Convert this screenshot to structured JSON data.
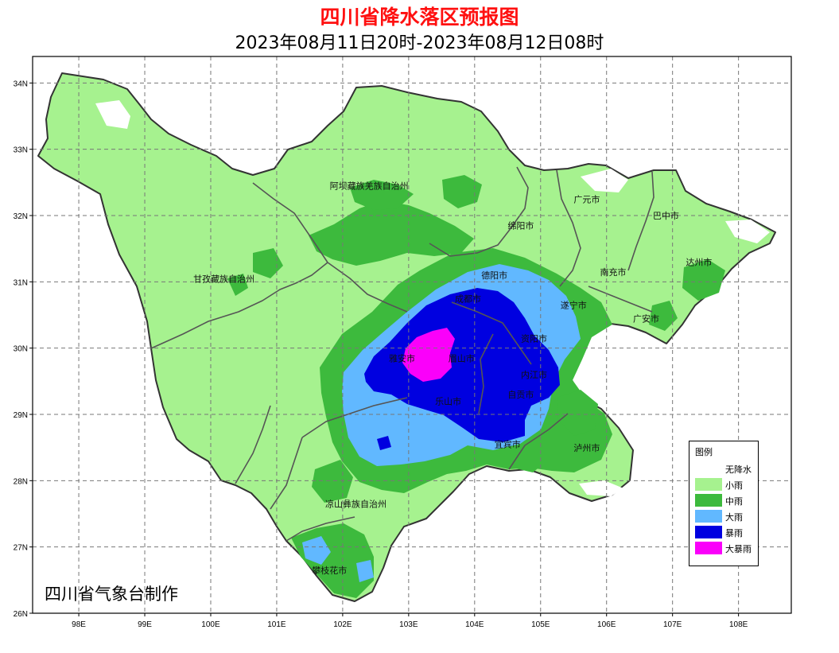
{
  "title": "四川省降水落区预报图",
  "subtitle": "2023年08月11日20时-2023年08月12日08时",
  "credit": "四川省气象台制作",
  "axes": {
    "x_ticks": [
      "98E",
      "99E",
      "100E",
      "101E",
      "102E",
      "103E",
      "104E",
      "105E",
      "106E",
      "107E",
      "108E"
    ],
    "y_ticks": [
      "34N",
      "33N",
      "32N",
      "31N",
      "30N",
      "29N",
      "28N",
      "27N",
      "26N"
    ],
    "lon_range": [
      97.3,
      108.8
    ],
    "lat_range": [
      26,
      34.4
    ],
    "grid": "dashed"
  },
  "colors": {
    "none": "#ffffff",
    "light": "#a6f28f",
    "moderate": "#3dba3d",
    "heavy": "#61b8ff",
    "rainstorm": "#0000e0",
    "heavy_rainstorm": "#fa00fa",
    "border": "#333333"
  },
  "cities": [
    {
      "name": "阿坝藏族羌族自治州",
      "lon": 102.4,
      "lat": 32.4
    },
    {
      "name": "甘孜藏族自治州",
      "lon": 100.2,
      "lat": 31.0
    },
    {
      "name": "广元市",
      "lon": 105.7,
      "lat": 32.2
    },
    {
      "name": "巴中市",
      "lon": 106.9,
      "lat": 31.95
    },
    {
      "name": "绵阳市",
      "lon": 104.7,
      "lat": 31.8
    },
    {
      "name": "达州市",
      "lon": 107.4,
      "lat": 31.25
    },
    {
      "name": "南充市",
      "lon": 106.1,
      "lat": 31.1
    },
    {
      "name": "德阳市",
      "lon": 104.3,
      "lat": 31.05
    },
    {
      "name": "成都市",
      "lon": 103.9,
      "lat": 30.7
    },
    {
      "name": "遂宁市",
      "lon": 105.5,
      "lat": 30.6
    },
    {
      "name": "广安市",
      "lon": 106.6,
      "lat": 30.4
    },
    {
      "name": "资阳市",
      "lon": 104.9,
      "lat": 30.1
    },
    {
      "name": "雅安市",
      "lon": 102.9,
      "lat": 29.8
    },
    {
      "name": "眉山市",
      "lon": 103.8,
      "lat": 29.8
    },
    {
      "name": "内江市",
      "lon": 104.9,
      "lat": 29.55
    },
    {
      "name": "乐山市",
      "lon": 103.6,
      "lat": 29.15
    },
    {
      "name": "自贡市",
      "lon": 104.7,
      "lat": 29.25
    },
    {
      "name": "宜宾市",
      "lon": 104.5,
      "lat": 28.5
    },
    {
      "name": "泸州市",
      "lon": 105.7,
      "lat": 28.45
    },
    {
      "name": "凉山彝族自治州",
      "lon": 102.2,
      "lat": 27.6
    },
    {
      "name": "攀枝花市",
      "lon": 101.8,
      "lat": 26.6
    }
  ],
  "legend": {
    "title": "图例",
    "items": [
      {
        "label": "无降水",
        "color": "#ffffff"
      },
      {
        "label": "小雨",
        "color": "#a6f28f"
      },
      {
        "label": "中雨",
        "color": "#3dba3d"
      },
      {
        "label": "大雨",
        "color": "#61b8ff"
      },
      {
        "label": "暴雨",
        "color": "#0000e0"
      },
      {
        "label": "大暴雨",
        "color": "#fa00fa"
      }
    ]
  }
}
